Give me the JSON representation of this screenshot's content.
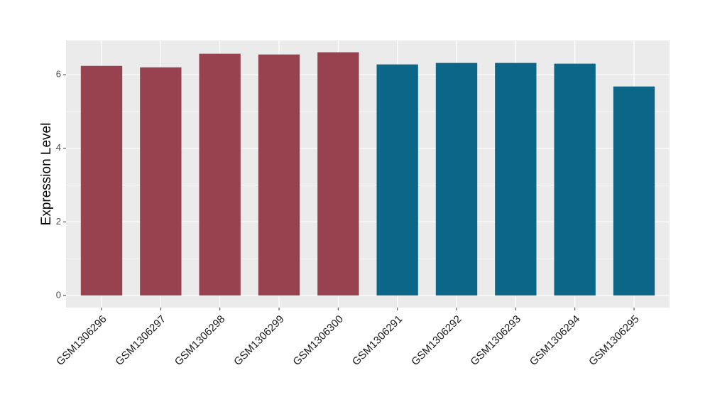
{
  "chart_data": {
    "type": "bar",
    "y_label": "Expression Level",
    "categories": [
      "GSM1306296",
      "GSM1306297",
      "GSM1306298",
      "GSM1306299",
      "GSM1306300",
      "GSM1306291",
      "GSM1306292",
      "GSM1306293",
      "GSM1306294",
      "GSM1306295"
    ],
    "values": [
      6.24,
      6.2,
      6.57,
      6.55,
      6.61,
      6.28,
      6.32,
      6.32,
      6.3,
      5.68
    ],
    "colors": [
      "#99424f",
      "#99424f",
      "#99424f",
      "#99424f",
      "#99424f",
      "#0c6687",
      "#0c6687",
      "#0c6687",
      "#0c6687",
      "#0c6687"
    ],
    "ylim": [
      -0.33,
      6.93
    ],
    "yticks": [
      0,
      2,
      4,
      6
    ],
    "grid": true
  }
}
